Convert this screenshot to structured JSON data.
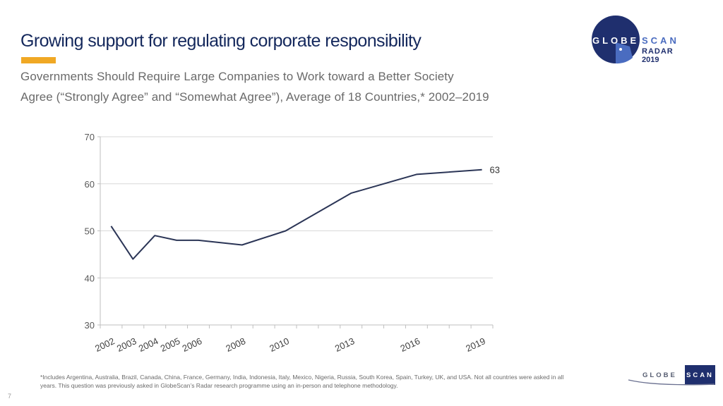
{
  "slide": {
    "title": "Growing support for regulating corporate responsibility",
    "subtitle_line1": "Governments Should Require Large Companies to Work toward a Better Society",
    "subtitle_line2": "Agree (“Strongly Agree” and “Somewhat Agree”), Average of 18 Countries,* 2002–2019",
    "footnote": "*Includes Argentina, Australia, Brazil, Canada, China, France, Germany, India, Indonesia, Italy, Mexico, Nigeria, Russia, South Korea, Spain, Turkey, UK, and USA. Not all countries were asked in all years. This question was previously asked in GlobeScan’s Radar research programme using an in-person and telephone methodology.",
    "page_number": "7"
  },
  "logo_top": {
    "word1": "GLOBE",
    "word2": "SCAN",
    "line2": "RADAR",
    "line3": "2019"
  },
  "logo_bottom": {
    "word1": "GLOBE",
    "word2": "SCAN"
  },
  "colors": {
    "title": "#14285c",
    "accent": "#f0a824",
    "line": "#2b3556",
    "brand_dark": "#1f2f6e",
    "brand_light": "#4a6cc0",
    "grid": "#d9d9d9"
  },
  "chart_data": {
    "type": "line",
    "title": "",
    "xlabel": "",
    "ylabel": "",
    "ylim": [
      30,
      70
    ],
    "yticks": [
      30,
      40,
      50,
      60,
      70
    ],
    "grid": true,
    "x_slots": [
      "2002",
      "2003",
      "2004",
      "2005",
      "2006",
      "2007",
      "2008",
      "2009",
      "2010",
      "2011",
      "2012",
      "2013",
      "2014",
      "2015",
      "2016",
      "2017",
      "2018",
      "2019"
    ],
    "categories": [
      "2002",
      "2003",
      "2004",
      "2005",
      "2006",
      "2008",
      "2010",
      "2013",
      "2016",
      "2019"
    ],
    "series": [
      {
        "name": "Agree (Strongly + Somewhat)",
        "values": [
          51,
          44,
          49,
          48,
          48,
          47,
          50,
          58,
          62,
          63
        ]
      }
    ],
    "end_label": "63"
  }
}
